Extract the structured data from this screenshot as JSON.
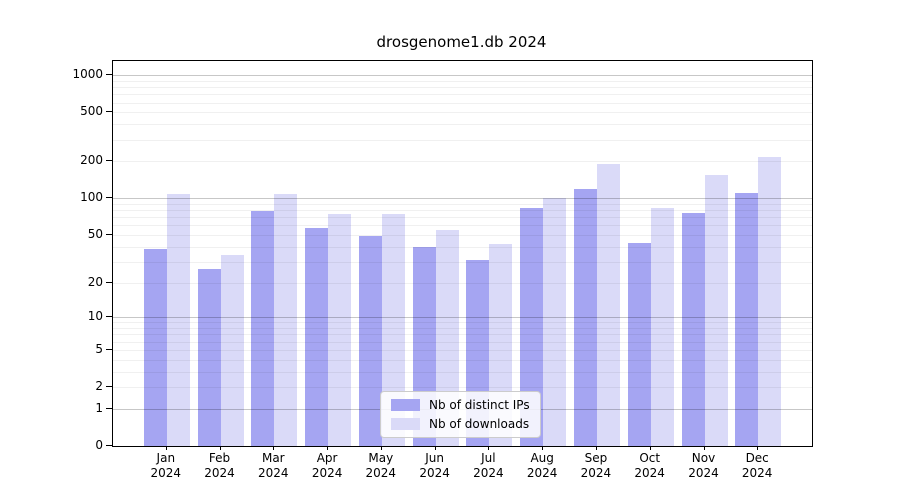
{
  "figure": {
    "title": "drosgenome1.db 2024",
    "legend": {
      "items": [
        {
          "label": "Nb of distinct IPs",
          "color": "#a5a5f2"
        },
        {
          "label": "Nb of downloads",
          "color": "#dadaf8"
        }
      ],
      "position": "lower center"
    }
  },
  "chart_data": {
    "type": "bar",
    "title": "drosgenome1.db 2024",
    "categories": [
      "Jan",
      "Feb",
      "Mar",
      "Apr",
      "May",
      "Jun",
      "Jul",
      "Aug",
      "Sep",
      "Oct",
      "Nov",
      "Dec"
    ],
    "category_year": "2024",
    "series": [
      {
        "name": "Nb of distinct IPs",
        "color": "#a5a5f2",
        "values": [
          38,
          26,
          78,
          57,
          49,
          40,
          31,
          84,
          120,
          43,
          76,
          110
        ]
      },
      {
        "name": "Nb of downloads",
        "color": "#dadaf8",
        "values": [
          108,
          34,
          108,
          75,
          74,
          55,
          42,
          100,
          191,
          84,
          155,
          215
        ]
      }
    ],
    "xlabel": "",
    "ylabel": "",
    "yscale": "log1p",
    "yticks": [
      0,
      1,
      2,
      5,
      10,
      20,
      50,
      100,
      200,
      500,
      1000
    ],
    "ylim": [
      0,
      1300
    ],
    "grid": true,
    "grid_major_at": [
      1,
      10,
      100,
      1000
    ],
    "legend_position": "lower center"
  }
}
